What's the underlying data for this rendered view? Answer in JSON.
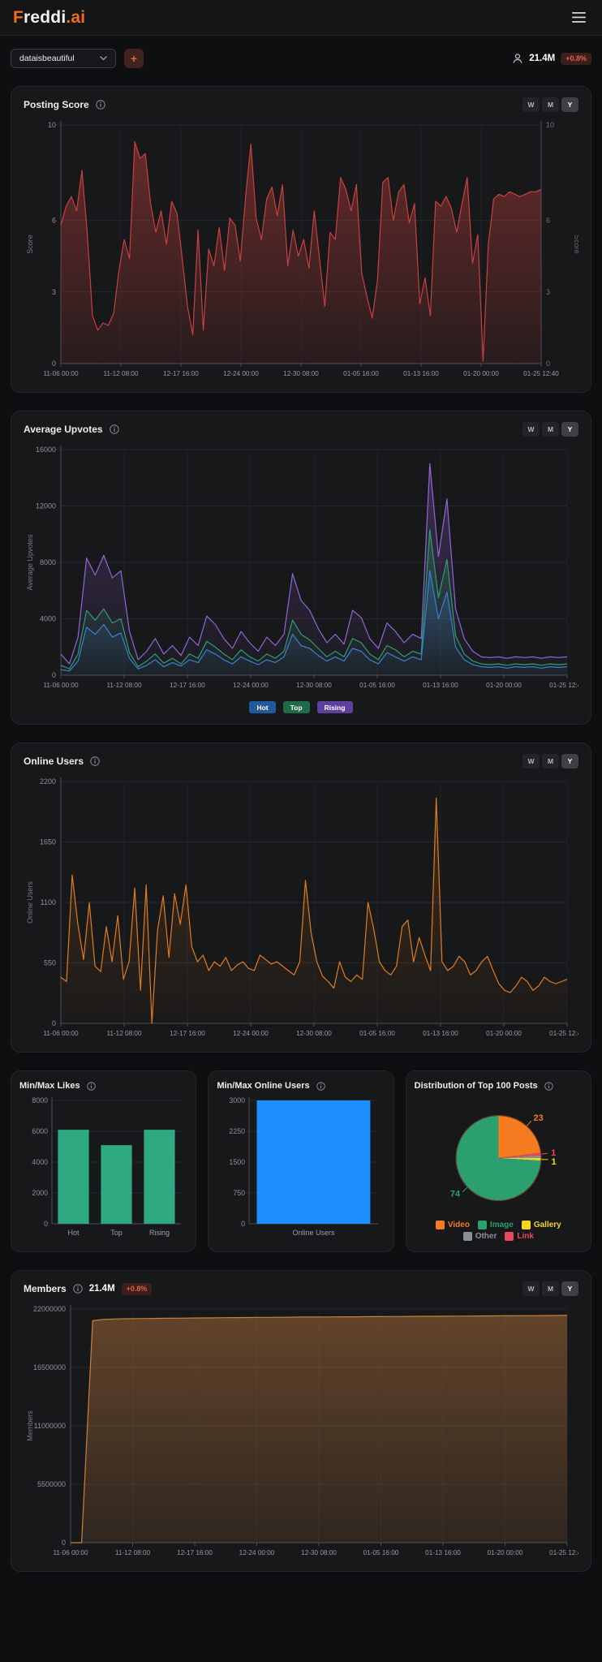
{
  "header": {
    "brand_f": "F",
    "brand_mid": "reddi",
    "brand_suffix": ".ai"
  },
  "controls": {
    "community_value": "dataisbeautiful",
    "add_label": "+",
    "members_value": "21.4M",
    "members_change": "+0.8%"
  },
  "range": [
    "W",
    "M",
    "Y"
  ],
  "selected_range": "Y",
  "chart_data": [
    {
      "id": "posting_score",
      "type": "area",
      "title": "Posting Score",
      "ylabel": "Score",
      "ylabel_right": "Score",
      "dual_axis": true,
      "ylim": [
        0,
        10
      ],
      "yticks": [
        0,
        3,
        6,
        10
      ],
      "grid": true,
      "x_labels": [
        "11-06 00:00",
        "11-12 08:00",
        "12-17 16:00",
        "12-24 00:00",
        "12-30 08:00",
        "01-05 16:00",
        "01-13 16:00",
        "01-20 00:00",
        "01-25 12:40"
      ],
      "series": [
        {
          "name": "Score",
          "color": "#c9413e",
          "fill_top": 0.45,
          "fill_bottom": 0.1,
          "values": [
            5.8,
            6.6,
            7.0,
            6.4,
            8.1,
            5.5,
            2.0,
            1.4,
            1.7,
            1.6,
            2.1,
            3.9,
            5.2,
            4.4,
            9.3,
            8.6,
            8.8,
            6.7,
            5.5,
            6.4,
            5.0,
            6.8,
            6.3,
            4.4,
            2.4,
            1.2,
            5.6,
            1.4,
            4.8,
            4.1,
            5.7,
            3.9,
            6.1,
            5.8,
            4.3,
            7.0,
            9.2,
            6.1,
            5.2,
            6.9,
            7.4,
            6.2,
            7.5,
            4.1,
            5.6,
            4.5,
            5.2,
            4.0,
            6.4,
            4.4,
            2.4,
            5.5,
            5.2,
            7.8,
            7.3,
            6.4,
            7.5,
            3.8,
            2.8,
            1.9,
            3.5,
            7.6,
            7.8,
            6.0,
            7.2,
            7.5,
            5.9,
            6.7,
            2.5,
            3.6,
            2.0,
            6.8,
            6.6,
            7.0,
            6.5,
            5.5,
            6.7,
            7.8,
            4.2,
            5.4,
            0.1,
            5.0,
            6.9,
            7.1,
            7.0,
            7.2,
            7.1,
            7.0,
            7.1,
            7.2,
            7.2,
            7.3
          ]
        }
      ]
    },
    {
      "id": "average_upvotes",
      "type": "line",
      "title": "Average Upvotes",
      "ylabel": "Average Upvotes",
      "ylim": [
        0,
        16000
      ],
      "yticks": [
        0,
        4000,
        8000,
        12000,
        16000
      ],
      "grid": true,
      "x_labels": [
        "11-06 00:00",
        "11-12 08:00",
        "12-17 16:00",
        "12-24 00:00",
        "12-30 08:00",
        "01-05 16:00",
        "01-13 16:00",
        "01-20 00:00",
        "01-25 12:40"
      ],
      "legend_pills": [
        {
          "label": "Hot",
          "color": "#1f5a9e"
        },
        {
          "label": "Top",
          "color": "#1d6b47"
        },
        {
          "label": "Rising",
          "color": "#5f3f9e"
        }
      ],
      "series": [
        {
          "name": "Rising",
          "color": "#9165d8",
          "fill_top": 0.3,
          "fill_bottom": 0.03,
          "values": [
            1500,
            800,
            2700,
            8300,
            7100,
            8500,
            6900,
            7400,
            3100,
            1100,
            1700,
            2600,
            1500,
            2100,
            1400,
            2700,
            2100,
            4200,
            3600,
            2600,
            1900,
            3100,
            2300,
            1700,
            2700,
            2100,
            2900,
            7200,
            5300,
            4600,
            3300,
            2300,
            2900,
            2200,
            4600,
            4100,
            2600,
            1900,
            3700,
            3100,
            2300,
            2900,
            2600,
            15000,
            8400,
            12500,
            4700,
            2600,
            1700,
            1300,
            1250,
            1300,
            1200,
            1300,
            1250,
            1300,
            1200,
            1300,
            1250,
            1300
          ]
        },
        {
          "name": "Top",
          "color": "#2e9e6e",
          "fill_top": 0.3,
          "fill_bottom": 0.03,
          "values": [
            700,
            450,
            1500,
            4600,
            3900,
            4700,
            3700,
            4000,
            1600,
            600,
            1000,
            1500,
            850,
            1200,
            800,
            1500,
            1200,
            2400,
            2000,
            1500,
            1100,
            1800,
            1300,
            1000,
            1500,
            1200,
            1700,
            3900,
            2900,
            2500,
            1900,
            1300,
            1700,
            1300,
            2600,
            2300,
            1500,
            1100,
            2100,
            1800,
            1300,
            1700,
            1500,
            10300,
            5500,
            8200,
            2800,
            1500,
            1000,
            800,
            750,
            800,
            700,
            800,
            750,
            800,
            700,
            800,
            750,
            800
          ]
        },
        {
          "name": "Hot",
          "color": "#3b7fd1",
          "fill_top": 0.3,
          "fill_bottom": 0.03,
          "values": [
            400,
            300,
            1000,
            3400,
            2900,
            3600,
            2700,
            3000,
            1200,
            450,
            700,
            1100,
            600,
            900,
            650,
            1100,
            900,
            1800,
            1500,
            1100,
            800,
            1300,
            1000,
            750,
            1100,
            900,
            1300,
            2900,
            2100,
            1900,
            1400,
            1000,
            1300,
            1000,
            1900,
            1700,
            1100,
            800,
            1600,
            1300,
            1000,
            1300,
            1100,
            7400,
            4000,
            5900,
            2000,
            1100,
            750,
            600,
            550,
            600,
            500,
            600,
            550,
            600,
            500,
            600,
            550,
            600
          ]
        }
      ]
    },
    {
      "id": "online_users",
      "type": "area",
      "title": "Online Users",
      "ylabel": "Online Users",
      "ylim": [
        0,
        2200
      ],
      "yticks": [
        0,
        550,
        1100,
        1650,
        2200
      ],
      "grid": true,
      "x_labels": [
        "11-06 00:00",
        "11-12 08:00",
        "12-17 16:00",
        "12-24 00:00",
        "12-30 08:00",
        "01-05 16:00",
        "01-13 16:00",
        "01-20 00:00",
        "01-25 12:40"
      ],
      "series": [
        {
          "name": "Online Users",
          "color": "#e07b1f",
          "fill_top": 0.22,
          "fill_bottom": 0.02,
          "values": [
            420,
            380,
            1350,
            900,
            580,
            1100,
            520,
            470,
            880,
            560,
            980,
            400,
            560,
            1230,
            300,
            1260,
            0,
            850,
            1160,
            600,
            1180,
            900,
            1260,
            700,
            560,
            620,
            480,
            560,
            520,
            600,
            480,
            530,
            560,
            500,
            480,
            620,
            580,
            540,
            560,
            520,
            480,
            440,
            560,
            1300,
            820,
            560,
            430,
            380,
            320,
            560,
            420,
            380,
            440,
            400,
            1100,
            860,
            560,
            480,
            440,
            520,
            880,
            940,
            560,
            780,
            620,
            480,
            2050,
            560,
            480,
            520,
            610,
            560,
            440,
            480,
            560,
            610,
            480,
            360,
            300,
            280,
            340,
            420,
            380,
            300,
            340,
            420,
            380,
            360,
            380,
            400
          ]
        }
      ]
    },
    {
      "id": "minmax_likes",
      "type": "bar",
      "title": "Min/Max Likes",
      "categories": [
        "Hot",
        "Top",
        "Rising"
      ],
      "values": [
        6100,
        5100,
        6100
      ],
      "ylim": [
        0,
        8000
      ],
      "yticks": [
        0,
        2000,
        4000,
        6000,
        8000
      ],
      "color": "#2fa981",
      "bar_ratio": 0.72
    },
    {
      "id": "minmax_online",
      "type": "bar",
      "title": "Min/Max Online Users",
      "categories": [
        "Online Users"
      ],
      "values": [
        3000
      ],
      "ylim": [
        0,
        3000
      ],
      "yticks": [
        0,
        750,
        1500,
        2250,
        3000
      ],
      "color": "#1e8fff",
      "bar_ratio": 0.88
    },
    {
      "id": "top100_pie",
      "type": "pie",
      "title": "Distribution of Top 100 Posts",
      "slices": [
        {
          "label": "Video",
          "value": 23,
          "color": "#f47b20",
          "show_label": true
        },
        {
          "label": "Link",
          "value": 1,
          "color": "#e8495f",
          "show_label": true
        },
        {
          "label": "Other",
          "value": 1,
          "color": "#8a8f98",
          "show_label": false
        },
        {
          "label": "Gallery",
          "value": 1,
          "color": "#f2d71e",
          "show_label": true
        },
        {
          "label": "Image",
          "value": 74,
          "color": "#2ba06e",
          "show_label": true
        }
      ],
      "legend": [
        {
          "label": "Video",
          "color": "#f47b20"
        },
        {
          "label": "Image",
          "color": "#2ba06e"
        },
        {
          "label": "Gallery",
          "color": "#f2d71e"
        },
        {
          "label": "Other",
          "color": "#8a8f98"
        },
        {
          "label": "Link",
          "color": "#e8495f"
        }
      ]
    },
    {
      "id": "members",
      "type": "area",
      "title": "Members",
      "badge_value": "21.4M",
      "badge_change": "+0.8%",
      "ylabel": "Members",
      "ml": 58,
      "ylim": [
        0,
        22000000
      ],
      "yticks": [
        0,
        5500000,
        11000000,
        16500000,
        22000000
      ],
      "grid": true,
      "x_labels": [
        "11-06 00:00",
        "11-12 08:00",
        "12-17 16:00",
        "12-24 00:00",
        "12-30 08:00",
        "01-05 16:00",
        "01-13 16:00",
        "01-20 00:00",
        "01-25 12:40"
      ],
      "series": [
        {
          "name": "Members",
          "color": "#c8803f",
          "fill_top": 0.42,
          "fill_bottom": 0.14,
          "values": [
            0,
            0,
            20900000,
            21020000,
            21060000,
            21080000,
            21100000,
            21110000,
            21120000,
            21130000,
            21140000,
            21150000,
            21160000,
            21170000,
            21180000,
            21190000,
            21200000,
            21210000,
            21215000,
            21220000,
            21230000,
            21240000,
            21245000,
            21250000,
            21260000,
            21265000,
            21270000,
            21280000,
            21285000,
            21290000,
            21300000,
            21305000,
            21310000,
            21315000,
            21320000,
            21330000,
            21335000,
            21340000,
            21350000,
            21355000,
            21360000,
            21370000,
            21375000,
            21380000,
            21390000,
            21400000
          ]
        }
      ]
    }
  ]
}
